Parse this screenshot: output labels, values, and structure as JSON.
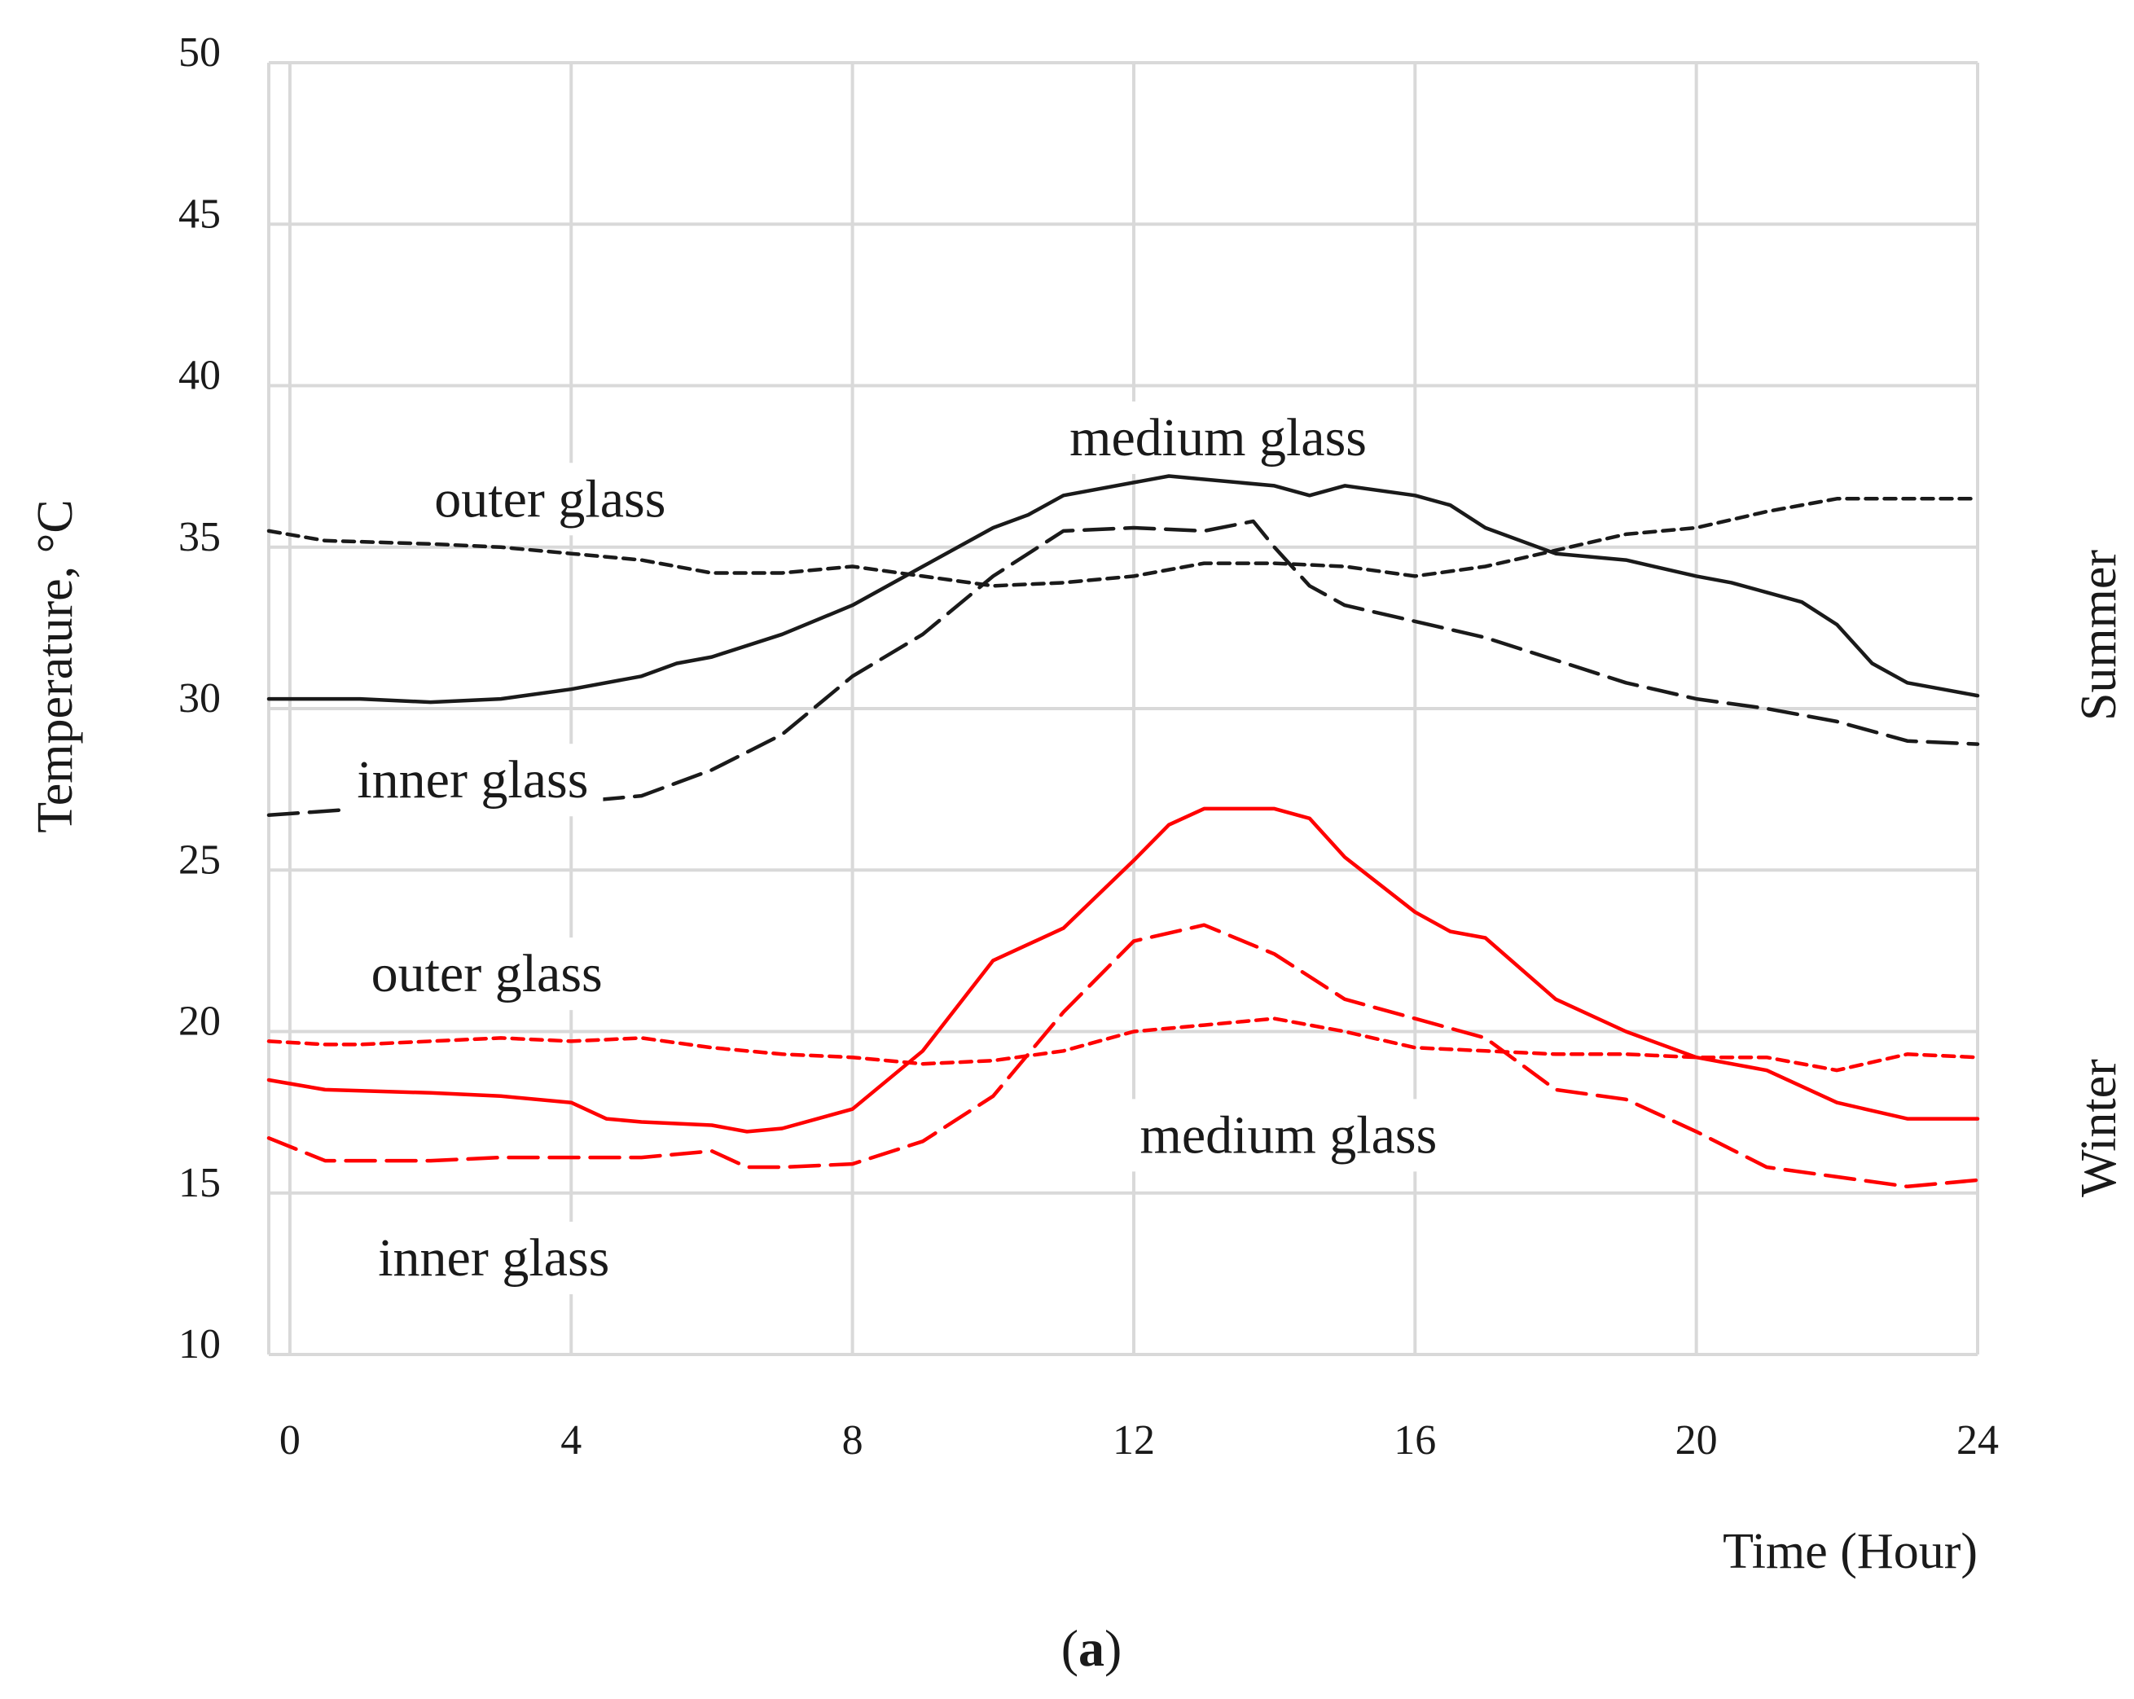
{
  "chart_data": {
    "type": "line",
    "xlabel": "Time (Hour)",
    "ylabel": "Temperature, °C",
    "xlim": [
      -0.3,
      24
    ],
    "ylim": [
      10,
      50
    ],
    "x_ticks": [
      0,
      4,
      8,
      12,
      16,
      20,
      24
    ],
    "y_ticks": [
      10,
      15,
      20,
      25,
      30,
      35,
      40,
      45,
      50
    ],
    "grid": true,
    "caption": "(a)",
    "caption_letter": "a",
    "caption_open": "(",
    "caption_close": ")",
    "season_labels": [
      "Summer",
      "Winter"
    ],
    "annotations": [
      {
        "text": "outer glass",
        "x": 3.7,
        "y": 36.5
      },
      {
        "text": "medium glass",
        "x": 13.2,
        "y": 38.4
      },
      {
        "text": "inner glass",
        "x": 2.6,
        "y": 27.8
      },
      {
        "text": "outer glass",
        "x": 2.8,
        "y": 21.8
      },
      {
        "text": "medium glass",
        "x": 14.2,
        "y": 16.8
      },
      {
        "text": "inner glass",
        "x": 2.9,
        "y": 13.0
      }
    ],
    "colors": {
      "summer": "#1a1a1a",
      "winter": "#ff0000"
    },
    "series": [
      {
        "season": "Summer",
        "style": "solid",
        "x": [
          -0.3,
          0.2,
          1,
          2,
          3,
          4,
          5,
          5.5,
          6,
          7,
          8,
          9,
          10,
          10.5,
          11,
          12,
          12.5,
          13,
          14,
          14.5,
          15,
          16,
          16.5,
          17,
          18,
          19,
          20,
          20.5,
          21,
          21.5,
          22,
          22.5,
          23,
          23.5,
          24
        ],
        "y": [
          30.3,
          30.3,
          30.3,
          30.2,
          30.3,
          30.6,
          31.0,
          31.4,
          31.6,
          32.3,
          33.2,
          34.4,
          35.6,
          36.0,
          36.6,
          37.0,
          37.2,
          37.1,
          36.9,
          36.6,
          36.9,
          36.6,
          36.3,
          35.6,
          34.8,
          34.6,
          34.1,
          33.9,
          33.6,
          33.3,
          32.6,
          31.4,
          30.8,
          30.6,
          30.4
        ]
      },
      {
        "season": "Summer",
        "style": "short-dash",
        "x": [
          -0.3,
          0.5,
          2,
          3,
          4,
          5,
          6,
          7,
          8,
          9,
          10,
          11,
          12,
          13,
          14,
          15,
          16,
          17,
          18,
          19,
          20,
          21,
          22,
          23,
          24
        ],
        "y": [
          35.5,
          35.2,
          35.1,
          35.0,
          34.8,
          34.6,
          34.2,
          34.2,
          34.4,
          34.1,
          33.8,
          33.9,
          34.1,
          34.5,
          34.5,
          34.4,
          34.1,
          34.4,
          34.9,
          35.4,
          35.6,
          36.1,
          36.5,
          36.5,
          36.5
        ]
      },
      {
        "season": "Summer",
        "style": "long-dash",
        "x": [
          -0.3,
          1,
          2,
          3,
          4,
          5,
          6,
          7,
          8,
          9,
          10,
          11,
          12,
          13,
          13.7,
          14,
          14.5,
          15,
          16,
          17,
          18,
          19,
          20,
          21,
          22,
          23,
          24
        ],
        "y": [
          26.7,
          26.9,
          27.0,
          27.0,
          27.1,
          27.3,
          28.1,
          29.2,
          31.0,
          32.3,
          34.1,
          35.5,
          35.6,
          35.5,
          35.8,
          35.0,
          33.8,
          33.2,
          32.7,
          32.2,
          31.5,
          30.8,
          30.3,
          30.0,
          29.6,
          29.0,
          28.9
        ]
      },
      {
        "season": "Winter",
        "style": "solid",
        "x": [
          -0.3,
          0.5,
          2,
          3,
          4,
          4.5,
          5,
          6,
          6.5,
          7,
          8,
          9,
          10,
          11,
          12,
          12.5,
          13,
          14,
          14.5,
          15,
          16,
          16.5,
          17,
          18,
          19,
          20,
          21,
          22,
          23,
          24
        ],
        "y": [
          18.5,
          18.2,
          18.1,
          18.0,
          17.8,
          17.3,
          17.2,
          17.1,
          16.9,
          17.0,
          17.6,
          19.4,
          22.2,
          23.2,
          25.3,
          26.4,
          26.9,
          26.9,
          26.6,
          25.4,
          23.7,
          23.1,
          22.9,
          21.0,
          20.0,
          19.2,
          18.8,
          17.8,
          17.3,
          17.3
        ]
      },
      {
        "season": "Winter",
        "style": "short-dash",
        "x": [
          -0.3,
          0.5,
          1,
          2,
          3,
          4,
          5,
          6,
          7,
          8,
          9,
          10,
          11,
          12,
          13,
          14,
          15,
          16,
          17,
          18,
          19,
          20,
          21,
          22,
          23,
          24
        ],
        "y": [
          19.7,
          19.6,
          19.6,
          19.7,
          19.8,
          19.7,
          19.8,
          19.5,
          19.3,
          19.2,
          19.0,
          19.1,
          19.4,
          20.0,
          20.2,
          20.4,
          20.0,
          19.5,
          19.4,
          19.3,
          19.3,
          19.2,
          19.2,
          18.8,
          19.3,
          19.2
        ]
      },
      {
        "season": "Winter",
        "style": "long-dash",
        "x": [
          -0.3,
          0.5,
          2,
          3,
          4,
          5,
          6,
          6.5,
          7,
          8,
          9,
          10,
          11,
          12,
          13,
          14,
          15,
          16,
          17,
          18,
          19,
          20,
          21,
          22,
          23,
          24
        ],
        "y": [
          16.7,
          16.0,
          16.0,
          16.1,
          16.1,
          16.1,
          16.3,
          15.8,
          15.8,
          15.9,
          16.6,
          18.0,
          20.6,
          22.8,
          23.3,
          22.4,
          21.0,
          20.4,
          19.8,
          18.2,
          17.9,
          16.9,
          15.8,
          15.5,
          15.2,
          15.4
        ]
      }
    ]
  }
}
